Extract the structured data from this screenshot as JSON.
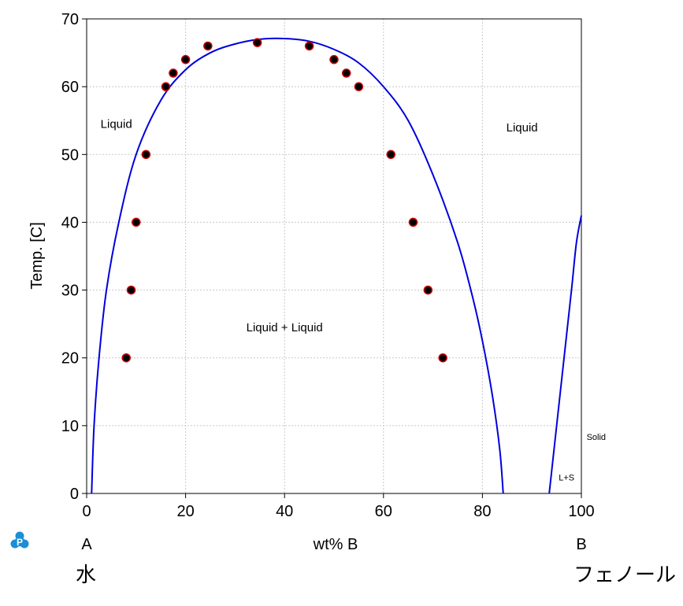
{
  "chart_data": {
    "type": "scatter",
    "title": "",
    "xlabel": "wt%  B",
    "ylabel": "Temp.  [C]",
    "xlim": [
      0,
      100
    ],
    "ylim": [
      0,
      70
    ],
    "xticks": [
      0,
      20,
      40,
      60,
      80,
      100
    ],
    "yticks": [
      0,
      10,
      20,
      30,
      40,
      50,
      60,
      70
    ],
    "grid": true,
    "component_left": "A",
    "component_right": "B",
    "component_left_name": "水",
    "component_right_name": "フェノール",
    "region_labels": [
      {
        "text": "Liquid",
        "x": 6,
        "y": 54.5,
        "size": "medium"
      },
      {
        "text": "Liquid",
        "x": 88,
        "y": 54,
        "size": "medium"
      },
      {
        "text": "Liquid + Liquid",
        "x": 40,
        "y": 24.5,
        "size": "medium"
      },
      {
        "text": "Solid",
        "x": 103,
        "y": 8.5,
        "size": "small"
      },
      {
        "text": "L+S",
        "x": 97,
        "y": 2.5,
        "size": "small"
      }
    ],
    "series": [
      {
        "type": "points",
        "points": [
          [
            8,
            20
          ],
          [
            9,
            30
          ],
          [
            10,
            40
          ],
          [
            12,
            50
          ],
          [
            16,
            60
          ],
          [
            17.5,
            62
          ],
          [
            20,
            64
          ],
          [
            24.5,
            66
          ],
          [
            34.5,
            66.5
          ],
          [
            45,
            66
          ],
          [
            50,
            64
          ],
          [
            52.5,
            62
          ],
          [
            55,
            60
          ],
          [
            61.5,
            50
          ],
          [
            66,
            40
          ],
          [
            69,
            30
          ],
          [
            72,
            20
          ]
        ],
        "color": "#000000",
        "edge_color": "#cc0000"
      },
      {
        "type": "line",
        "points": [
          [
            1,
            0
          ],
          [
            1.5,
            10
          ],
          [
            2.5,
            20
          ],
          [
            4,
            30
          ],
          [
            6.5,
            40
          ],
          [
            10,
            50
          ],
          [
            15,
            58
          ],
          [
            20,
            62.5
          ],
          [
            25,
            65
          ],
          [
            30,
            66.3
          ],
          [
            35,
            67
          ],
          [
            40,
            67.1
          ],
          [
            45,
            66.7
          ],
          [
            50,
            65.5
          ],
          [
            55,
            63.5
          ],
          [
            60,
            60
          ],
          [
            65,
            55
          ],
          [
            70,
            47
          ],
          [
            75,
            37
          ],
          [
            78,
            29
          ],
          [
            80,
            22.5
          ],
          [
            82,
            14.5
          ],
          [
            83.5,
            6.5
          ],
          [
            84.2,
            0
          ]
        ],
        "color": "#0000dd"
      },
      {
        "type": "line",
        "points": [
          [
            93.5,
            0
          ],
          [
            95,
            10
          ],
          [
            96.5,
            20
          ],
          [
            98,
            30
          ],
          [
            99,
            37
          ],
          [
            100,
            41
          ]
        ],
        "color": "#0000dd"
      }
    ]
  }
}
